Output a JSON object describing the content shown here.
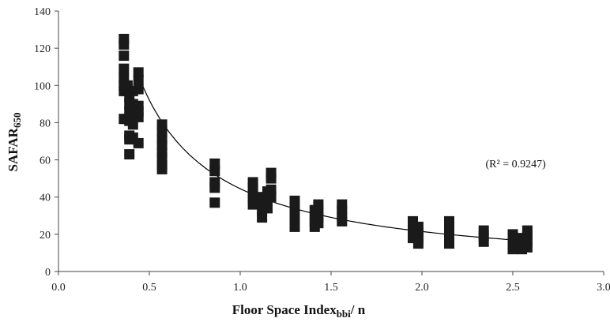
{
  "chart_data": {
    "type": "scatter",
    "title": "",
    "xlabel": {
      "main": "Floor Space Index",
      "sub": "bbi",
      "suffix": "/ n"
    },
    "ylabel": {
      "main": "SAFAR",
      "sub": "650"
    },
    "xlim": [
      0.0,
      3.0
    ],
    "ylim": [
      0,
      140
    ],
    "x_ticks": [
      0.0,
      0.5,
      1.0,
      1.5,
      2.0,
      2.5,
      3.0
    ],
    "x_tick_labels": [
      "0.0",
      "0.5",
      "1.0",
      "1.5",
      "2.0",
      "2.5",
      "3.0"
    ],
    "y_ticks": [
      0,
      20,
      40,
      60,
      80,
      100,
      120,
      140
    ],
    "y_tick_labels": [
      "0",
      "20",
      "40",
      "60",
      "80",
      "100",
      "120",
      "140"
    ],
    "grid": false,
    "annotation": {
      "text": "(R² = 0.9247)",
      "x": 2.35,
      "y": 56
    },
    "marker_color": "#1a1a1a",
    "trendline": {
      "type": "power",
      "a": 44.5,
      "b": -1.05,
      "x_range": [
        0.43,
        2.6
      ],
      "color": "#000000"
    },
    "points": [
      {
        "x": 0.36,
        "y": 125
      },
      {
        "x": 0.36,
        "y": 122
      },
      {
        "x": 0.36,
        "y": 116
      },
      {
        "x": 0.36,
        "y": 109
      },
      {
        "x": 0.36,
        "y": 104
      },
      {
        "x": 0.36,
        "y": 100
      },
      {
        "x": 0.36,
        "y": 97
      },
      {
        "x": 0.36,
        "y": 82
      },
      {
        "x": 0.38,
        "y": 100
      },
      {
        "x": 0.38,
        "y": 97
      },
      {
        "x": 0.38,
        "y": 82
      },
      {
        "x": 0.39,
        "y": 97
      },
      {
        "x": 0.39,
        "y": 94
      },
      {
        "x": 0.39,
        "y": 90
      },
      {
        "x": 0.39,
        "y": 86
      },
      {
        "x": 0.39,
        "y": 81
      },
      {
        "x": 0.39,
        "y": 73
      },
      {
        "x": 0.39,
        "y": 71
      },
      {
        "x": 0.39,
        "y": 63
      },
      {
        "x": 0.41,
        "y": 97
      },
      {
        "x": 0.41,
        "y": 90
      },
      {
        "x": 0.41,
        "y": 86
      },
      {
        "x": 0.41,
        "y": 79
      },
      {
        "x": 0.41,
        "y": 72
      },
      {
        "x": 0.44,
        "y": 107
      },
      {
        "x": 0.44,
        "y": 103
      },
      {
        "x": 0.44,
        "y": 98
      },
      {
        "x": 0.44,
        "y": 89
      },
      {
        "x": 0.44,
        "y": 86
      },
      {
        "x": 0.44,
        "y": 83
      },
      {
        "x": 0.44,
        "y": 69
      },
      {
        "x": 0.57,
        "y": 79
      },
      {
        "x": 0.57,
        "y": 75
      },
      {
        "x": 0.57,
        "y": 71
      },
      {
        "x": 0.57,
        "y": 68
      },
      {
        "x": 0.57,
        "y": 64
      },
      {
        "x": 0.57,
        "y": 61
      },
      {
        "x": 0.57,
        "y": 57
      },
      {
        "x": 0.57,
        "y": 55
      },
      {
        "x": 0.86,
        "y": 58
      },
      {
        "x": 0.86,
        "y": 54
      },
      {
        "x": 0.86,
        "y": 48
      },
      {
        "x": 0.86,
        "y": 45
      },
      {
        "x": 0.86,
        "y": 37
      },
      {
        "x": 1.07,
        "y": 48
      },
      {
        "x": 1.07,
        "y": 45
      },
      {
        "x": 1.07,
        "y": 42
      },
      {
        "x": 1.07,
        "y": 39
      },
      {
        "x": 1.07,
        "y": 36
      },
      {
        "x": 1.12,
        "y": 40
      },
      {
        "x": 1.12,
        "y": 37
      },
      {
        "x": 1.12,
        "y": 33
      },
      {
        "x": 1.12,
        "y": 29
      },
      {
        "x": 1.15,
        "y": 43
      },
      {
        "x": 1.15,
        "y": 40
      },
      {
        "x": 1.15,
        "y": 37
      },
      {
        "x": 1.15,
        "y": 34
      },
      {
        "x": 1.17,
        "y": 53
      },
      {
        "x": 1.17,
        "y": 50
      },
      {
        "x": 1.17,
        "y": 44
      },
      {
        "x": 1.17,
        "y": 40
      },
      {
        "x": 1.3,
        "y": 38
      },
      {
        "x": 1.3,
        "y": 34
      },
      {
        "x": 1.3,
        "y": 31
      },
      {
        "x": 1.3,
        "y": 27
      },
      {
        "x": 1.3,
        "y": 24
      },
      {
        "x": 1.41,
        "y": 33
      },
      {
        "x": 1.41,
        "y": 30
      },
      {
        "x": 1.41,
        "y": 27
      },
      {
        "x": 1.41,
        "y": 24
      },
      {
        "x": 1.43,
        "y": 36
      },
      {
        "x": 1.43,
        "y": 33
      },
      {
        "x": 1.43,
        "y": 29
      },
      {
        "x": 1.43,
        "y": 26
      },
      {
        "x": 1.56,
        "y": 36
      },
      {
        "x": 1.56,
        "y": 33
      },
      {
        "x": 1.56,
        "y": 30
      },
      {
        "x": 1.56,
        "y": 27
      },
      {
        "x": 1.95,
        "y": 27
      },
      {
        "x": 1.95,
        "y": 24
      },
      {
        "x": 1.95,
        "y": 21
      },
      {
        "x": 1.95,
        "y": 18
      },
      {
        "x": 1.98,
        "y": 24
      },
      {
        "x": 1.98,
        "y": 21
      },
      {
        "x": 1.98,
        "y": 18
      },
      {
        "x": 1.98,
        "y": 15
      },
      {
        "x": 2.15,
        "y": 27
      },
      {
        "x": 2.15,
        "y": 24
      },
      {
        "x": 2.15,
        "y": 21
      },
      {
        "x": 2.15,
        "y": 18
      },
      {
        "x": 2.15,
        "y": 15
      },
      {
        "x": 2.34,
        "y": 22
      },
      {
        "x": 2.34,
        "y": 19
      },
      {
        "x": 2.34,
        "y": 16
      },
      {
        "x": 2.5,
        "y": 20
      },
      {
        "x": 2.5,
        "y": 17
      },
      {
        "x": 2.5,
        "y": 14
      },
      {
        "x": 2.5,
        "y": 12
      },
      {
        "x": 2.55,
        "y": 18
      },
      {
        "x": 2.55,
        "y": 15
      },
      {
        "x": 2.55,
        "y": 12
      },
      {
        "x": 2.58,
        "y": 22
      },
      {
        "x": 2.58,
        "y": 19
      },
      {
        "x": 2.58,
        "y": 16
      },
      {
        "x": 2.58,
        "y": 13
      }
    ]
  }
}
